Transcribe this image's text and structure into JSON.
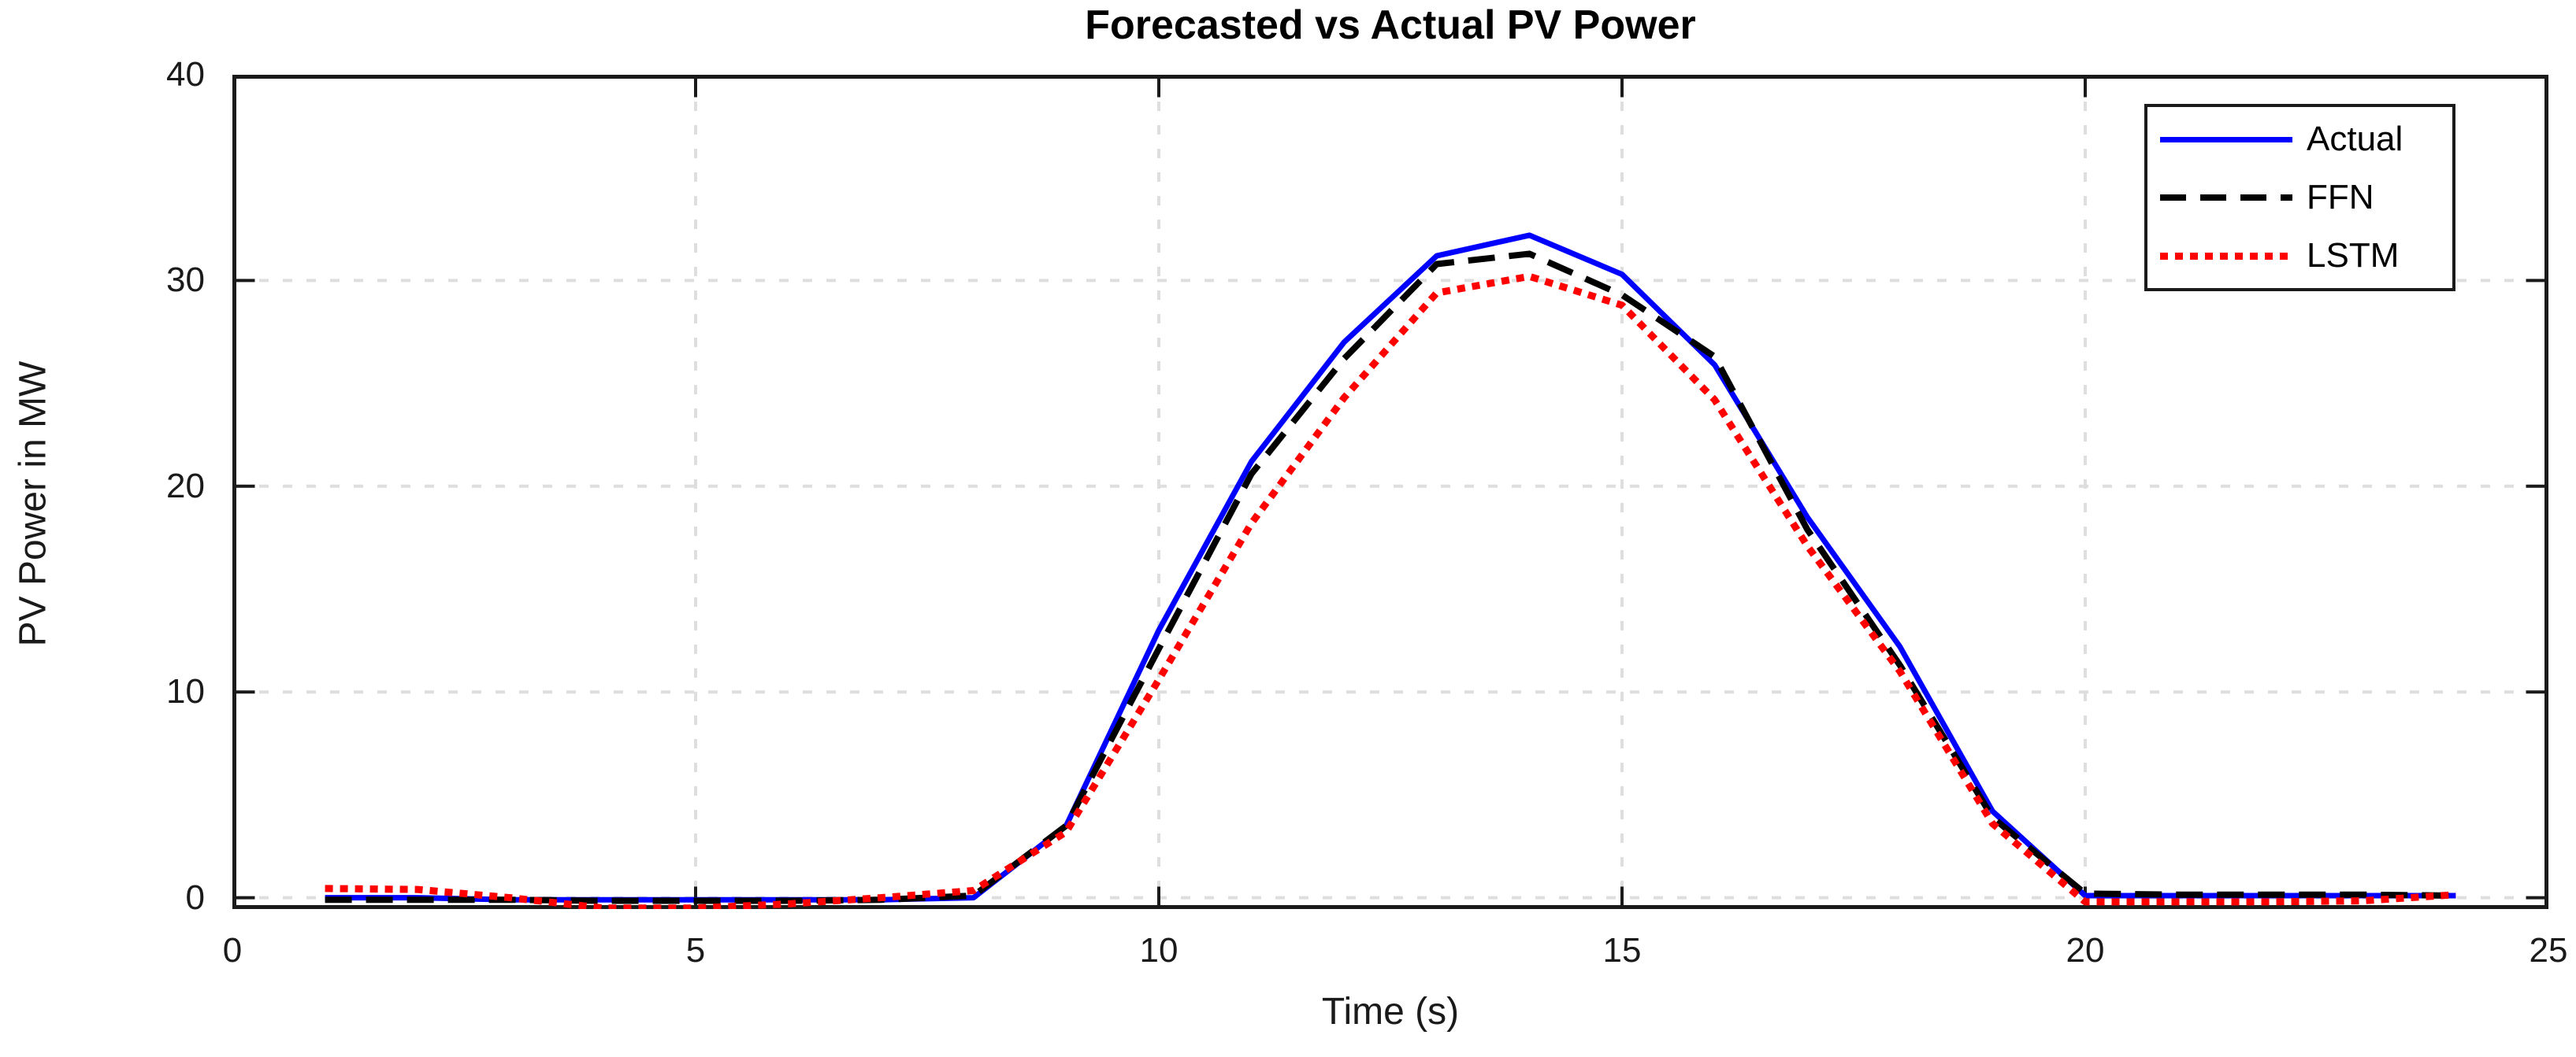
{
  "chart_data": {
    "type": "line",
    "title": "Forecasted vs Actual PV Power",
    "xlabel": "Time (s)",
    "ylabel": "PV Power in MW",
    "xlim": [
      0,
      25
    ],
    "ylim": [
      -0.55,
      40
    ],
    "xticks": [
      0,
      5,
      10,
      15,
      20,
      25
    ],
    "yticks": [
      0,
      10,
      20,
      30,
      40
    ],
    "grid": true,
    "grid_style": "dashed",
    "grid_color": "#dedede",
    "axis_color": "#1a1a1a",
    "background_color": "#ffffff",
    "legend_position": "top-right",
    "x": [
      1,
      2,
      3,
      4,
      5,
      6,
      7,
      8,
      9,
      10,
      11,
      12,
      13,
      14,
      15,
      16,
      17,
      18,
      19,
      20,
      21,
      22,
      23,
      24
    ],
    "series": [
      {
        "name": "Actual",
        "color": "#0000ff",
        "style": "solid",
        "values": [
          0.0,
          0.0,
          -0.1,
          -0.1,
          -0.1,
          -0.1,
          -0.1,
          0.0,
          3.5,
          13.0,
          21.2,
          27.0,
          31.2,
          32.2,
          30.3,
          25.9,
          18.5,
          12.2,
          4.2,
          0.1,
          0.1,
          0.1,
          0.1,
          0.1
        ]
      },
      {
        "name": "FFN",
        "color": "#000000",
        "style": "dashed",
        "values": [
          -0.1,
          -0.1,
          -0.1,
          -0.15,
          -0.15,
          -0.15,
          -0.1,
          0.1,
          3.5,
          12.1,
          20.6,
          26.2,
          30.8,
          31.3,
          29.3,
          26.3,
          17.9,
          11.3,
          3.9,
          0.2,
          0.15,
          0.15,
          0.15,
          0.1
        ]
      },
      {
        "name": "LSTM",
        "color": "#ff0000",
        "style": "dotted",
        "values": [
          0.45,
          0.4,
          0.0,
          -0.5,
          -0.5,
          -0.3,
          0.0,
          0.35,
          3.2,
          10.6,
          18.2,
          24.3,
          29.4,
          30.2,
          28.8,
          24.2,
          17.1,
          11.0,
          3.6,
          -0.2,
          -0.2,
          -0.2,
          -0.15,
          0.15
        ]
      }
    ]
  }
}
